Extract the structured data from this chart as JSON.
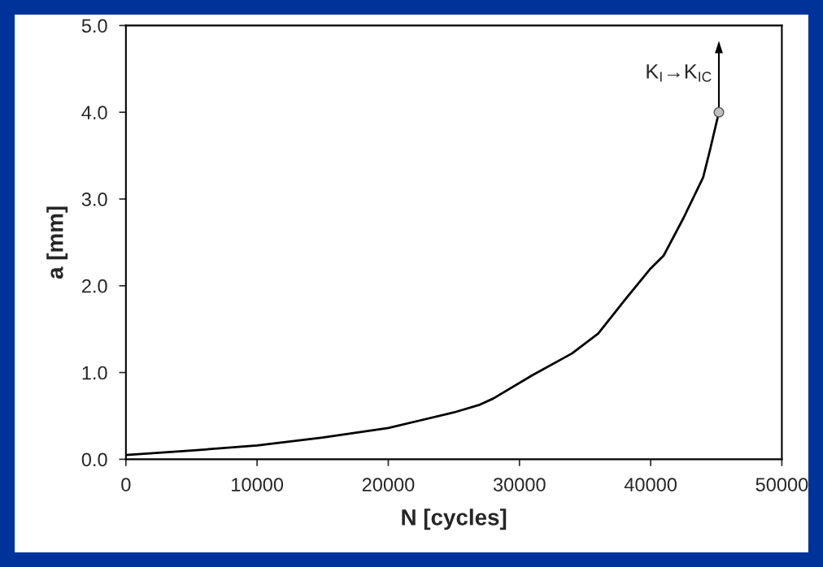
{
  "chart_data": {
    "type": "line",
    "xlabel": "N [cycles]",
    "ylabel": "a [mm]",
    "xlim": [
      0,
      50000
    ],
    "xticks": [
      0,
      10000,
      20000,
      30000,
      40000,
      50000
    ],
    "ylim": [
      0,
      5
    ],
    "yticks": [
      {
        "value": 0,
        "label": "0.0"
      },
      {
        "value": 1,
        "label": "1.0"
      },
      {
        "value": 2,
        "label": "2.0"
      },
      {
        "value": 3,
        "label": "3.0"
      },
      {
        "value": 4,
        "label": "4.0"
      },
      {
        "value": 5,
        "label": "5.0"
      }
    ],
    "grid": false,
    "legend": false,
    "series": [
      {
        "color": "#000000",
        "marker": "none",
        "line_style": "solid",
        "x": [
          0,
          5000,
          10000,
          15000,
          20000,
          25000,
          27000,
          28000,
          31000,
          34000,
          36000,
          38000,
          40000,
          41000,
          42500,
          44000,
          44500,
          45200
        ],
        "values": [
          0.05,
          0.1,
          0.16,
          0.25,
          0.36,
          0.54,
          0.63,
          0.7,
          0.97,
          1.22,
          1.45,
          1.83,
          2.2,
          2.35,
          2.78,
          3.25,
          3.55,
          4.0
        ]
      },
      {
        "type": "scatter",
        "color": "#c0c0c0",
        "marker": "circle",
        "x": [
          45200
        ],
        "values": [
          4.0
        ]
      }
    ],
    "annotations": [
      {
        "text": "K$_{I}$→K$_{IC}$",
        "x": 45200,
        "y": 4.0
      }
    ]
  }
}
